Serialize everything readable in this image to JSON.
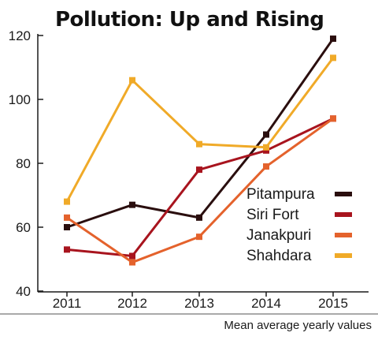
{
  "chart_data": {
    "type": "line",
    "title": "Pollution: Up and Rising",
    "caption": "Mean average yearly values",
    "xlabel": "",
    "ylabel": "",
    "x": [
      "2011",
      "2012",
      "2013",
      "2014",
      "2015"
    ],
    "ylim": [
      40,
      120
    ],
    "yticks": [
      40,
      60,
      80,
      100,
      120
    ],
    "legend_position": "right-center",
    "grid": false,
    "series": [
      {
        "name": "Pitampura",
        "color": "#2a0e0e",
        "values": [
          60,
          67,
          63,
          89,
          119
        ]
      },
      {
        "name": "Siri Fort",
        "color": "#a8141e",
        "values": [
          53,
          51,
          78,
          84,
          94
        ]
      },
      {
        "name": "Janakpuri",
        "color": "#e4622c",
        "values": [
          63,
          49,
          57,
          79,
          94
        ]
      },
      {
        "name": "Shahdara",
        "color": "#f0aa28",
        "values": [
          68,
          106,
          86,
          85,
          113
        ]
      }
    ]
  }
}
